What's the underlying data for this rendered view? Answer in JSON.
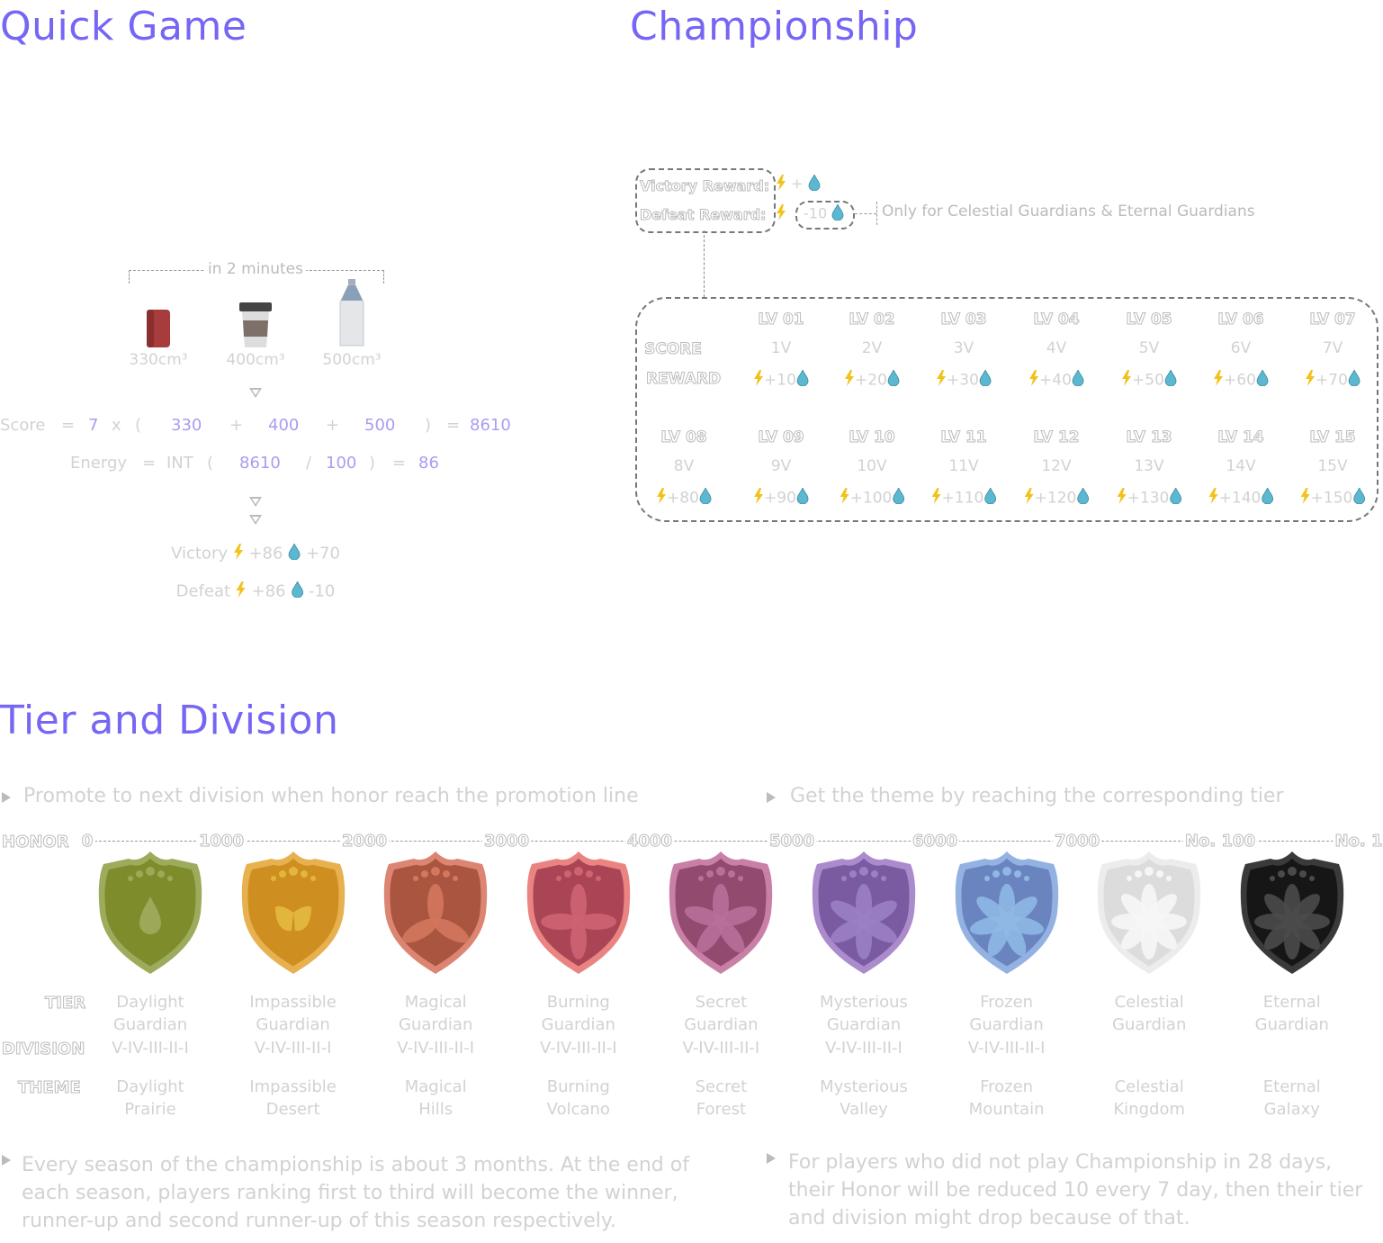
{
  "quick_game": {
    "title": "Quick Game",
    "bracket_label": "in 2 minutes",
    "items": [
      {
        "name": "can",
        "volume": "330cm³"
      },
      {
        "name": "cup",
        "volume": "400cm³"
      },
      {
        "name": "bottle",
        "volume": "500cm³"
      }
    ],
    "score_formula": {
      "label": "Score",
      "eq": "=",
      "mult": "7",
      "x": "x",
      "open": "(",
      "a": "330",
      "plus1": "+",
      "b": "400",
      "plus2": "+",
      "c": "500",
      "close": ")",
      "eq2": "=",
      "result": "8610"
    },
    "energy_formula": {
      "label": "Energy",
      "eq": "=",
      "fn": "INT",
      "open": "(",
      "a": "8610",
      "div": "/",
      "b": "100",
      "close": ")",
      "eq2": "=",
      "result": "86"
    },
    "victory": {
      "label": "Victory",
      "energy": "+86",
      "drop": "+70"
    },
    "defeat": {
      "label": "Defeat",
      "energy": "+86",
      "drop": "-10"
    }
  },
  "championship": {
    "title": "Championship",
    "victory_reward": "Victory Reward:",
    "plus": "+",
    "defeat_reward": "Defeat Reward:",
    "defeat_drop": "-10",
    "note": "Only for Celestial Guardians & Eternal Guardians",
    "score_label": "SCORE",
    "reward_label": "REWARD",
    "levels": [
      {
        "lv": "LV 01",
        "score": "1V",
        "reward": "+10"
      },
      {
        "lv": "LV 02",
        "score": "2V",
        "reward": "+20"
      },
      {
        "lv": "LV 03",
        "score": "3V",
        "reward": "+30"
      },
      {
        "lv": "LV 04",
        "score": "4V",
        "reward": "+40"
      },
      {
        "lv": "LV 05",
        "score": "5V",
        "reward": "+50"
      },
      {
        "lv": "LV 06",
        "score": "6V",
        "reward": "+60"
      },
      {
        "lv": "LV 07",
        "score": "7V",
        "reward": "+70"
      },
      {
        "lv": "LV 08",
        "score": "8V",
        "reward": "+80"
      },
      {
        "lv": "LV 09",
        "score": "9V",
        "reward": "+90"
      },
      {
        "lv": "LV 10",
        "score": "10V",
        "reward": "+100"
      },
      {
        "lv": "LV 11",
        "score": "11V",
        "reward": "+110"
      },
      {
        "lv": "LV 12",
        "score": "12V",
        "reward": "+120"
      },
      {
        "lv": "LV 13",
        "score": "13V",
        "reward": "+130"
      },
      {
        "lv": "LV 14",
        "score": "14V",
        "reward": "+140"
      },
      {
        "lv": "LV 15",
        "score": "15V",
        "reward": "+150"
      }
    ]
  },
  "tier": {
    "title": "Tier and Division",
    "bullet_left": "Promote to next division when honor reach the promotion line",
    "bullet_right": "Get the theme by reaching the corresponding tier",
    "honor_label": "HONOR",
    "tier_label": "TIER",
    "division_label": "DIVISION",
    "theme_label": "THEME",
    "honor_marks": [
      "0",
      "1000",
      "2000",
      "3000",
      "4000",
      "5000",
      "6000",
      "7000",
      "No. 100",
      "No. 1"
    ],
    "tiers": [
      {
        "name1": "Daylight",
        "name2": "Guardian",
        "division": "V-IV-III-II-I",
        "theme1": "Daylight",
        "theme2": "Prairie",
        "fill": "#7f8c2c",
        "rim": "#9cab5c",
        "emblem": "#9da858"
      },
      {
        "name1": "Impassible",
        "name2": "Guardian",
        "division": "V-IV-III-II-I",
        "theme1": "Impassible",
        "theme2": "Desert",
        "fill": "#cf8e20",
        "rim": "#e8b150",
        "emblem": "#e2b63c"
      },
      {
        "name1": "Magical",
        "name2": "Guardian",
        "division": "V-IV-III-II-I",
        "theme1": "Magical",
        "theme2": "Hills",
        "fill": "#a9553f",
        "rim": "#dc8572",
        "emblem": "#d4775e"
      },
      {
        "name1": "Burning",
        "name2": "Guardian",
        "division": "V-IV-III-II-I",
        "theme1": "Burning",
        "theme2": "Volcano",
        "fill": "#a94554",
        "rim": "#ea8482",
        "emblem": "#cd6373"
      },
      {
        "name1": "Secret",
        "name2": "Guardian",
        "division": "V-IV-III-II-I",
        "theme1": "Secret",
        "theme2": "Forest",
        "fill": "#924a6f",
        "rim": "#c980a6",
        "emblem": "#b8709a"
      },
      {
        "name1": "Mysterious",
        "name2": "Guardian",
        "division": "V-IV-III-II-I",
        "theme1": "Mysterious",
        "theme2": "Valley",
        "fill": "#7a5aa0",
        "rim": "#ab8bcc",
        "emblem": "#9a80c4"
      },
      {
        "name1": "Frozen",
        "name2": "Guardian",
        "division": "V-IV-III-II-I",
        "theme1": "Frozen",
        "theme2": "Mountain",
        "fill": "#6a84c0",
        "rim": "#93b2e2",
        "emblem": "#8fb8e6"
      },
      {
        "name1": "Celestial",
        "name2": "Guardian",
        "division": "",
        "theme1": "Celestial",
        "theme2": "Kingdom",
        "fill": "#dcdcdc",
        "rim": "#ececec",
        "emblem": "#f6f6f6"
      },
      {
        "name1": "Eternal",
        "name2": "Guardian",
        "division": "",
        "theme1": "Eternal",
        "theme2": "Galaxy",
        "fill": "#161616",
        "rim": "#3a3a3a",
        "emblem": "#4a4a4a"
      }
    ],
    "note_left": [
      "Every season of the championship is about 3 months. At the end of",
      "each season, players ranking first to third will become the winner,",
      "runner-up and second runner-up of this season respectively."
    ],
    "note_right": [
      "For players who did not play Championship in 28 days,",
      "their Honor will be reduced 10 every 7 day, then their tier",
      "and division might drop because of that."
    ]
  },
  "colors": {
    "accent": "#7566f5",
    "value": "#a99df2",
    "bolt": "#f2c21b",
    "drop": "#5bb8d0"
  }
}
